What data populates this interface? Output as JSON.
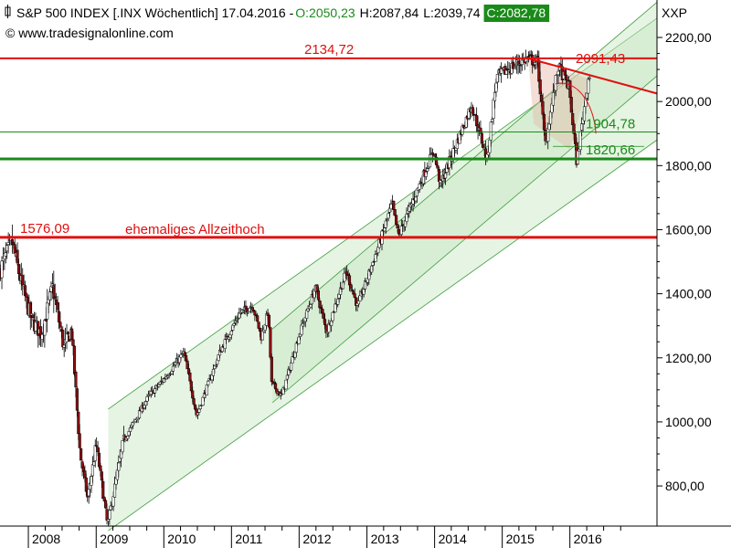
{
  "header": {
    "title": "S&P 500 INDEX [.INX  Wöchentlich] 17.04.2016 - ",
    "open": "O:2050,23",
    "high": "H:2087,84",
    "low": "L:2039,74",
    "close": "C:2082,78",
    "website": "© www.tradesignalonline.com",
    "axis_code": "XXP"
  },
  "colors": {
    "open": "#1a8a1a",
    "close_bg": "#1a8a1a",
    "resistance": "#e01010",
    "support": "#1a8a1a",
    "channel_fill": "#c8e6c0",
    "channel_line": "#3f9e3f",
    "up_candle": "#ffffff",
    "down_candle": "#8b1010",
    "wick": "#000000"
  },
  "chart_data": {
    "type": "candlestick",
    "title": "S&P 500 INDEX [.INX  Wöchentlich] 17.04.2016",
    "ylim": [
      620,
      2260
    ],
    "y_ticks": [
      800,
      1000,
      1200,
      1400,
      1600,
      1800,
      2000,
      2200
    ],
    "y_tick_labels": [
      "800,00",
      "1000,00",
      "1200,00",
      "1400,00",
      "1600,00",
      "1800,00",
      "2000,00",
      "2200,00"
    ],
    "x_range": [
      "2007-08-01",
      "2017-04-15"
    ],
    "x_ticks": [
      "2008-01-01",
      "2009-01-01",
      "2010-01-01",
      "2011-01-01",
      "2012-01-01",
      "2013-01-01",
      "2014-01-01",
      "2015-01-01",
      "2016-01-01"
    ],
    "x_tick_labels": [
      "2008",
      "2009",
      "2010",
      "2011",
      "2012",
      "2013",
      "2014",
      "2015",
      "2016"
    ],
    "price_path": [
      [
        "2007-08-01",
        1470
      ],
      [
        "2007-10-09",
        1560
      ],
      [
        "2007-11-25",
        1440
      ],
      [
        "2008-01-20",
        1320
      ],
      [
        "2008-03-15",
        1275
      ],
      [
        "2008-05-15",
        1420
      ],
      [
        "2008-07-15",
        1230
      ],
      [
        "2008-08-25",
        1290
      ],
      [
        "2008-10-10",
        900
      ],
      [
        "2008-11-20",
        760
      ],
      [
        "2009-01-05",
        930
      ],
      [
        "2009-03-07",
        677
      ],
      [
        "2009-06-01",
        940
      ],
      [
        "2009-10-15",
        1080
      ],
      [
        "2010-01-15",
        1140
      ],
      [
        "2010-04-23",
        1217
      ],
      [
        "2010-07-01",
        1020
      ],
      [
        "2010-11-05",
        1220
      ],
      [
        "2011-02-18",
        1340
      ],
      [
        "2011-04-29",
        1364
      ],
      [
        "2011-06-15",
        1265
      ],
      [
        "2011-07-22",
        1345
      ],
      [
        "2011-08-10",
        1120
      ],
      [
        "2011-10-03",
        1080
      ],
      [
        "2011-12-30",
        1260
      ],
      [
        "2012-04-02",
        1420
      ],
      [
        "2012-06-01",
        1280
      ],
      [
        "2012-09-15",
        1470
      ],
      [
        "2012-11-15",
        1360
      ],
      [
        "2013-03-15",
        1560
      ],
      [
        "2013-05-20",
        1680
      ],
      [
        "2013-06-24",
        1580
      ],
      [
        "2013-12-31",
        1848
      ],
      [
        "2014-02-05",
        1740
      ],
      [
        "2014-07-24",
        1990
      ],
      [
        "2014-10-15",
        1820
      ],
      [
        "2014-12-05",
        2075
      ],
      [
        "2015-03-01",
        2110
      ],
      [
        "2015-05-21",
        2134.72
      ],
      [
        "2015-07-15",
        2120
      ],
      [
        "2015-08-25",
        1867
      ],
      [
        "2015-11-03",
        2109
      ],
      [
        "2015-12-31",
        2045
      ],
      [
        "2016-02-11",
        1810
      ],
      [
        "2016-04-15",
        2082.78
      ]
    ],
    "levels": [
      {
        "value": 2134.72,
        "label": "2134,72",
        "color": "#e01010"
      },
      {
        "value": 1576.09,
        "label": "1576,09",
        "color": "#e01010",
        "note": "ehemaliges Allzeithoch"
      },
      {
        "value": 1904.78,
        "label": "1904,78",
        "color": "#1a8a1a"
      },
      {
        "value": 1820.66,
        "label": "1820,66",
        "color": "#1a8a1a"
      }
    ],
    "downtrend": {
      "start": [
        "2015-05-21",
        2134.72
      ],
      "end": [
        "2017-04-15",
        2025
      ],
      "label": "2091,43"
    },
    "channels": [
      {
        "lower": [
          [
            "2009-03-07",
            660
          ],
          [
            "2017-04-15",
            1880
          ]
        ],
        "upper": [
          [
            "2009-03-07",
            1040
          ],
          [
            "2017-04-15",
            2260
          ]
        ]
      },
      {
        "lower": [
          [
            "2011-08-10",
            1060
          ],
          [
            "2017-04-15",
            2080
          ]
        ],
        "upper": [
          [
            "2011-08-10",
            1290
          ],
          [
            "2017-04-15",
            2310
          ]
        ]
      }
    ]
  }
}
